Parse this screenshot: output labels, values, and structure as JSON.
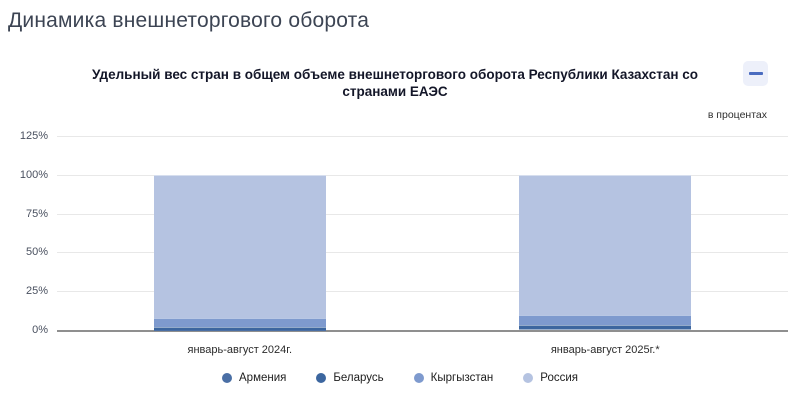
{
  "page": {
    "title": "Динамика внешнеторгового оборота"
  },
  "chart": {
    "title": "Удельный вес стран в общем объеме внешнеторгового оборота Республики Казахстан со странами ЕАЭС",
    "unit_label": "в процентах"
  },
  "chart_data": {
    "type": "bar",
    "stacked": true,
    "title": "Удельный вес стран в общем объеме внешнеторгового оборота Республики Казахстан со странами ЕАЭС",
    "subtitle": "в процентах",
    "categories": [
      "январь-август 2024г.",
      "январь-август 2025г.*"
    ],
    "series": [
      {
        "name": "Армения",
        "color": "#4a6fa5",
        "values": [
          0.3,
          0.4
        ]
      },
      {
        "name": "Беларусь",
        "color": "#3c669f",
        "values": [
          1.7,
          2.8
        ]
      },
      {
        "name": "Кыргызстан",
        "color": "#7e9ace",
        "values": [
          6.0,
          6.2
        ]
      },
      {
        "name": "Россия",
        "color": "#b5c3e1",
        "values": [
          92.0,
          90.6
        ]
      }
    ],
    "xlabel": "",
    "ylabel": "",
    "y_ticks": [
      "0%",
      "25%",
      "50%",
      "75%",
      "100%",
      "125%"
    ],
    "ylim": [
      0,
      125
    ],
    "grid": true,
    "legend_position": "bottom"
  }
}
